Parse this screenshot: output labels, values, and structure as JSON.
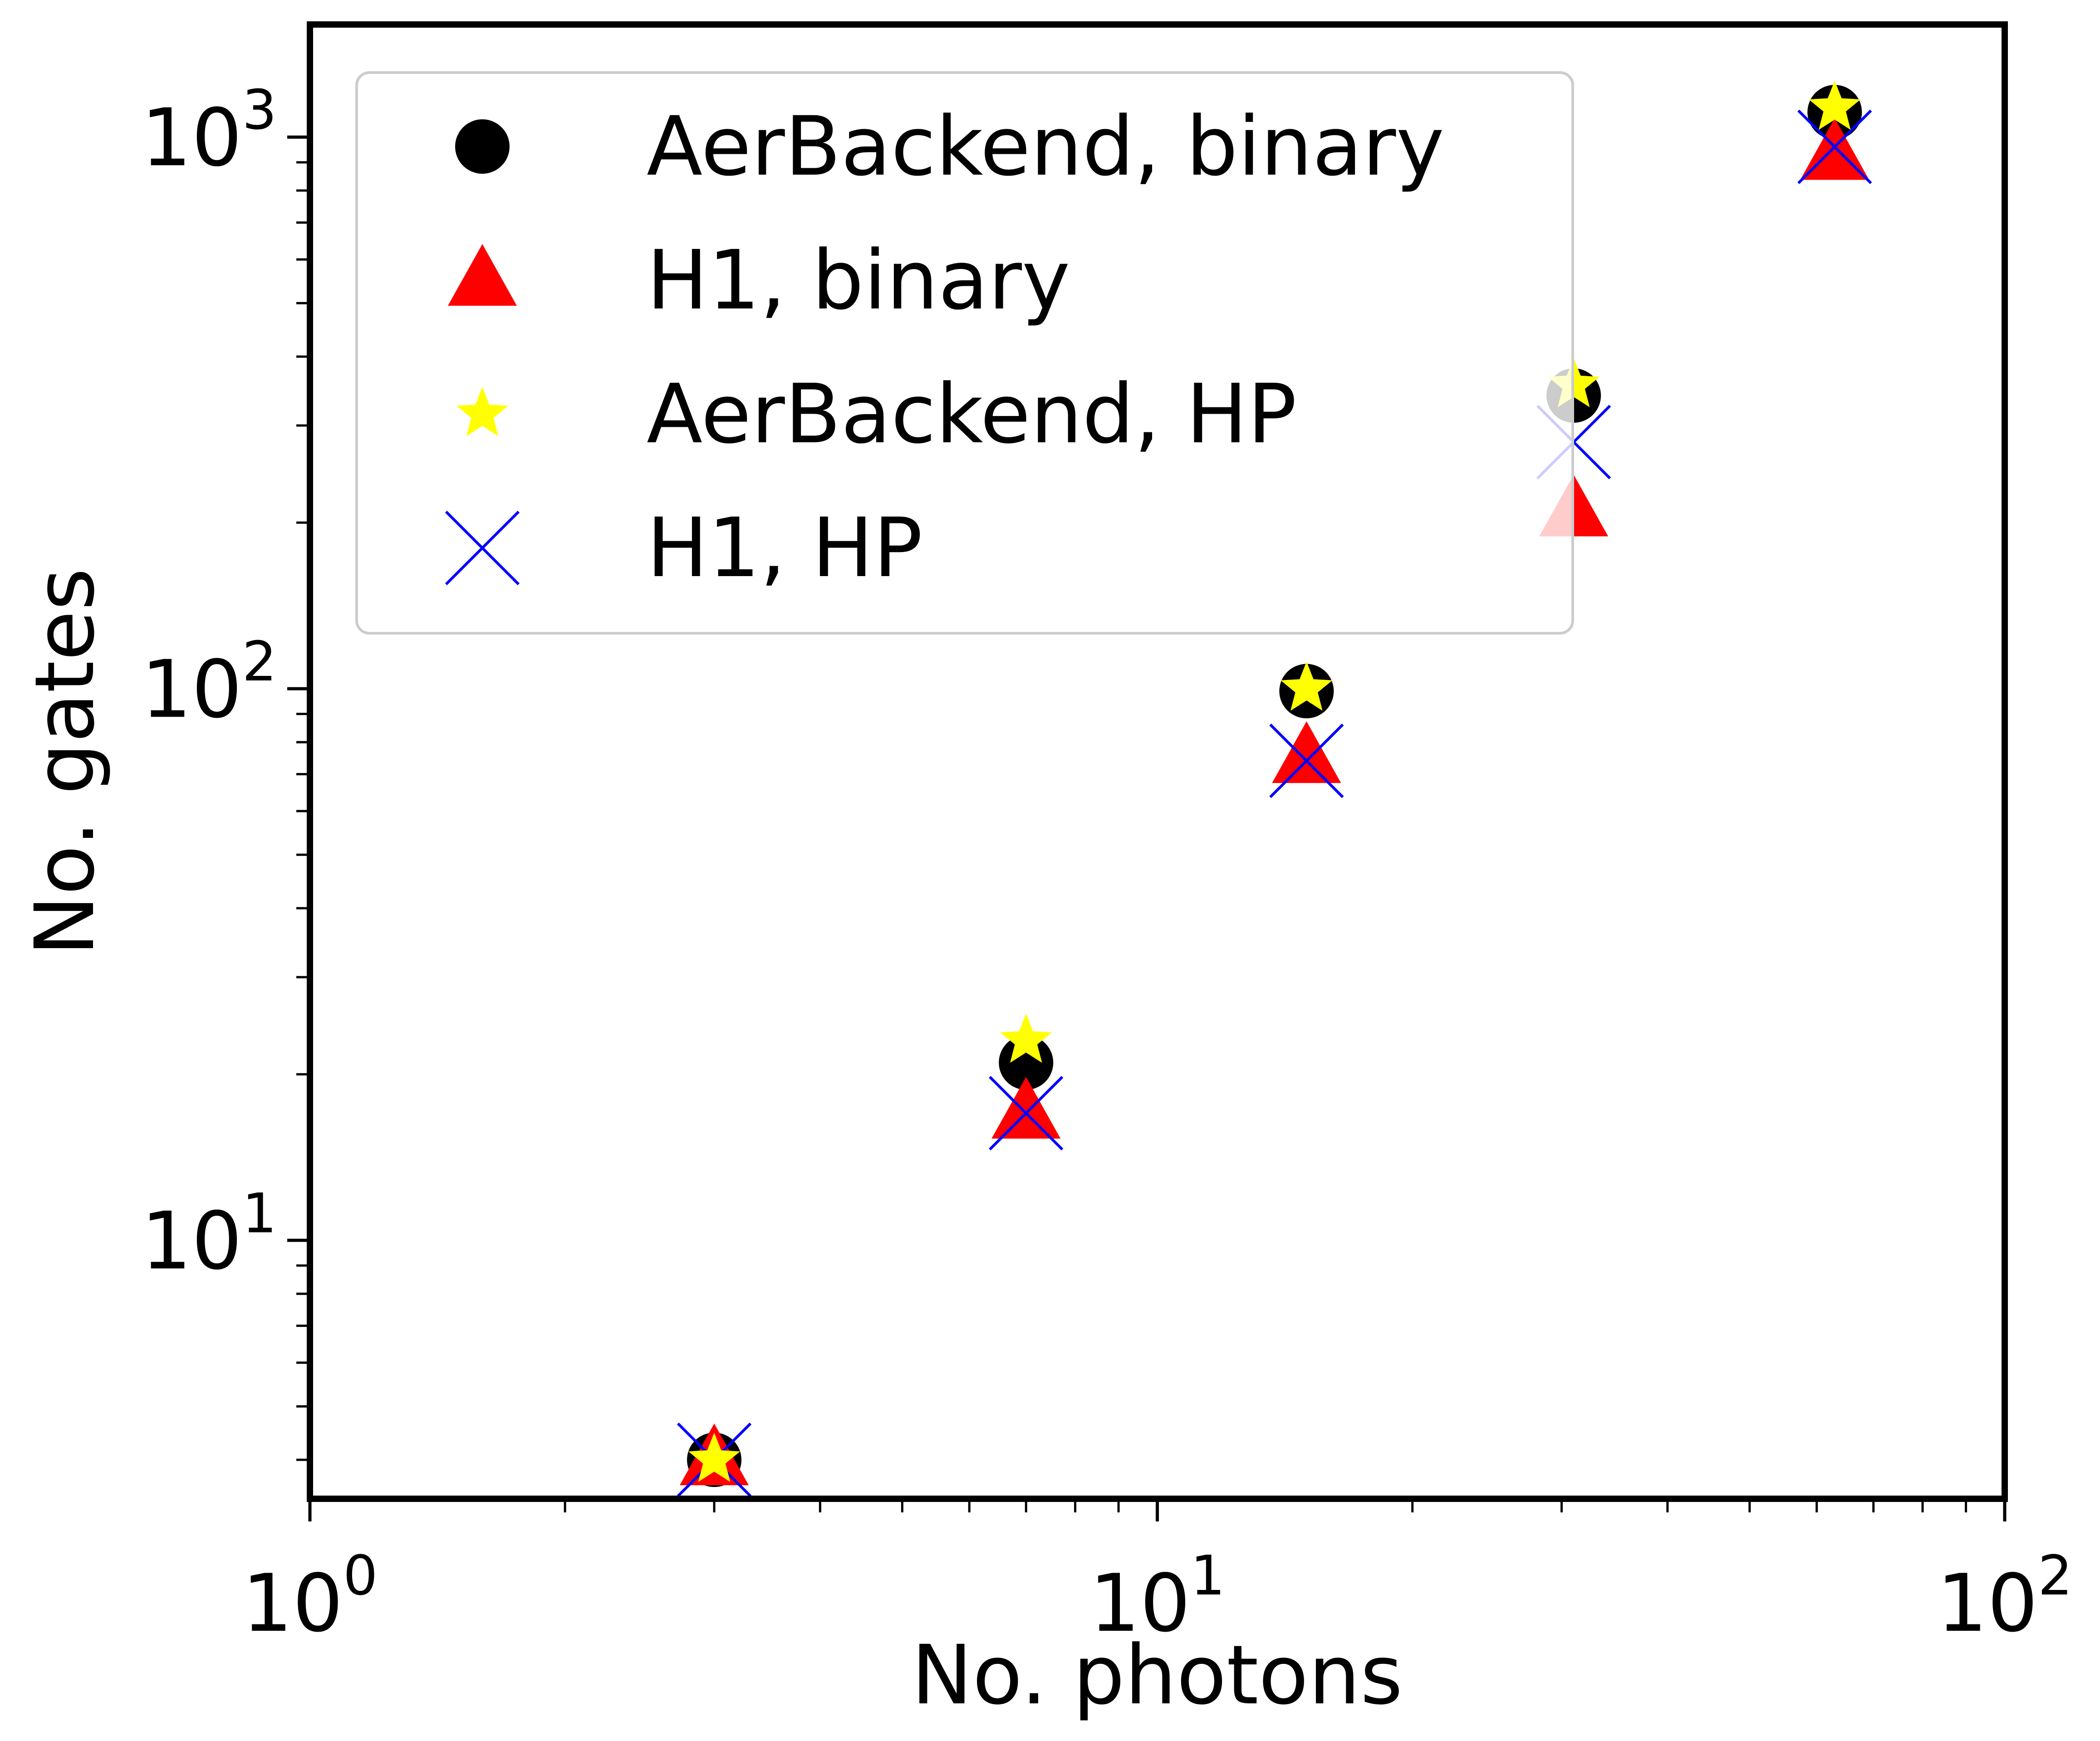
{
  "chart_data": {
    "type": "scatter",
    "title": "",
    "xlabel": "No. photons",
    "ylabel": "No. gates",
    "xscale": "log",
    "yscale": "log",
    "xlim": [
      1,
      100
    ],
    "ylim": [
      3.4,
      1600
    ],
    "grid": false,
    "legend_position": "top-left",
    "x_ticks": [
      {
        "value": 1,
        "base": "10",
        "exp": "0"
      },
      {
        "value": 10,
        "base": "10",
        "exp": "1"
      },
      {
        "value": 100,
        "base": "10",
        "exp": "2"
      }
    ],
    "y_ticks": [
      {
        "value": 10,
        "base": "10",
        "exp": "1"
      },
      {
        "value": 100,
        "base": "10",
        "exp": "2"
      },
      {
        "value": 1000,
        "base": "10",
        "exp": "3"
      }
    ],
    "x": [
      3,
      7,
      15,
      31,
      63
    ],
    "series": [
      {
        "name": "AerBackend, binary",
        "marker": "circle",
        "color": "#000000",
        "values": [
          4,
          21,
          99,
          340,
          1110
        ]
      },
      {
        "name": "H1, binary",
        "marker": "triangle",
        "color": "#ff0000",
        "values": [
          4,
          17,
          75,
          210,
          930
        ]
      },
      {
        "name": "AerBackend, HP",
        "marker": "star",
        "color": "#ffff00",
        "values": [
          4,
          23,
          100,
          355,
          1130
        ]
      },
      {
        "name": "H1, HP",
        "marker": "x",
        "color": "#0000ff",
        "values": [
          4,
          17,
          74,
          280,
          960
        ]
      }
    ]
  }
}
